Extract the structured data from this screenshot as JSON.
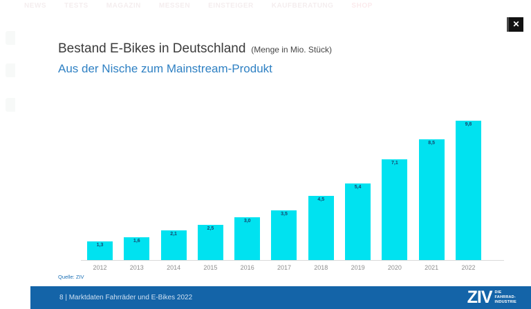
{
  "nav": {
    "items": [
      {
        "label": "NEWS",
        "hot": false
      },
      {
        "label": "TESTS",
        "hot": false
      },
      {
        "label": "MAGAZIN",
        "hot": false
      },
      {
        "label": "MESSEN",
        "hot": false
      },
      {
        "label": "EINSTEIGER",
        "hot": false
      },
      {
        "label": "KAUFBERATUNG",
        "hot": false
      },
      {
        "label": "SHOP",
        "hot": true
      }
    ]
  },
  "overlay": {
    "close_label": "✕"
  },
  "slide": {
    "title": "Bestand E-Bikes in Deutschland",
    "title_note": "(Menge in Mio. Stück)",
    "subtitle": "Aus der Nische zum Mainstream-Produkt",
    "source": "Quelle: ZIV",
    "footer": {
      "page_label": "8 | Marktdaten Fahrräder und E-Bikes 2022",
      "logo_text": "ZIV",
      "logo_tagline_lines": [
        "DIE",
        "FAHRRAD-",
        "INDUSTRIE"
      ]
    }
  },
  "chart_data": {
    "type": "bar",
    "title": "Bestand E-Bikes in Deutschland (Menge in Mio. Stück)",
    "subtitle": "Aus der Nische zum Mainstream-Produkt",
    "categories": [
      "2012",
      "2013",
      "2014",
      "2015",
      "2016",
      "2017",
      "2018",
      "2019",
      "2020",
      "2021",
      "2022"
    ],
    "values": [
      1.3,
      1.6,
      2.1,
      2.5,
      3.0,
      3.5,
      4.5,
      5.4,
      7.1,
      8.5,
      9.8
    ],
    "value_labels": [
      "1,3",
      "1,6",
      "2,1",
      "2,5",
      "3,0",
      "3,5",
      "4,5",
      "5,4",
      "7,1",
      "8,5",
      "9,8"
    ],
    "xlabel": "",
    "ylabel": "Menge in Mio. Stück",
    "ylim": [
      0,
      10.2
    ],
    "grid": false,
    "legend": false,
    "bar_color": "#00e2f0",
    "value_label_color": "#17456e",
    "axis_color": "#d9d9d9",
    "source": "Quelle: ZIV"
  },
  "colors": {
    "footer_bar": "#1464a8",
    "subtitle_blue": "#2e80c3",
    "bar_cyan": "#00e2f0"
  }
}
